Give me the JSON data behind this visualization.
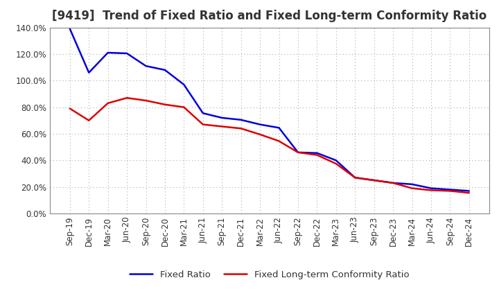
{
  "title": "[9419]  Trend of Fixed Ratio and Fixed Long-term Conformity Ratio",
  "x_labels": [
    "Sep-19",
    "Dec-19",
    "Mar-20",
    "Jun-20",
    "Sep-20",
    "Dec-20",
    "Mar-21",
    "Jun-21",
    "Sep-21",
    "Dec-21",
    "Mar-22",
    "Jun-22",
    "Sep-22",
    "Dec-22",
    "Mar-23",
    "Jun-23",
    "Sep-23",
    "Dec-23",
    "Mar-24",
    "Jun-24",
    "Sep-24",
    "Dec-24"
  ],
  "fixed_ratio": [
    1.39,
    1.06,
    1.21,
    1.205,
    1.11,
    1.08,
    0.97,
    0.755,
    0.72,
    0.705,
    0.67,
    0.645,
    0.46,
    0.455,
    0.4,
    0.27,
    0.25,
    0.23,
    0.22,
    0.19,
    0.18,
    0.17
  ],
  "fixed_ltcr": [
    0.79,
    0.7,
    0.83,
    0.87,
    0.85,
    0.82,
    0.8,
    0.67,
    0.655,
    0.64,
    0.595,
    0.545,
    0.46,
    0.44,
    0.375,
    0.27,
    0.25,
    0.23,
    0.19,
    0.175,
    0.17,
    0.155
  ],
  "fixed_ratio_color": "#0000dd",
  "fixed_ltcr_color": "#dd0000",
  "ylim": [
    0,
    1.4
  ],
  "ytick_step": 0.2,
  "background_color": "#ffffff",
  "plot_bg_color": "#ffffff",
  "grid_color": "#aaaaaa",
  "title_color": "#333333",
  "legend_fixed_ratio": "Fixed Ratio",
  "legend_fixed_ltcr": "Fixed Long-term Conformity Ratio",
  "title_fontsize": 12,
  "axis_fontsize": 8.5,
  "legend_fontsize": 9.5,
  "line_width": 1.8
}
